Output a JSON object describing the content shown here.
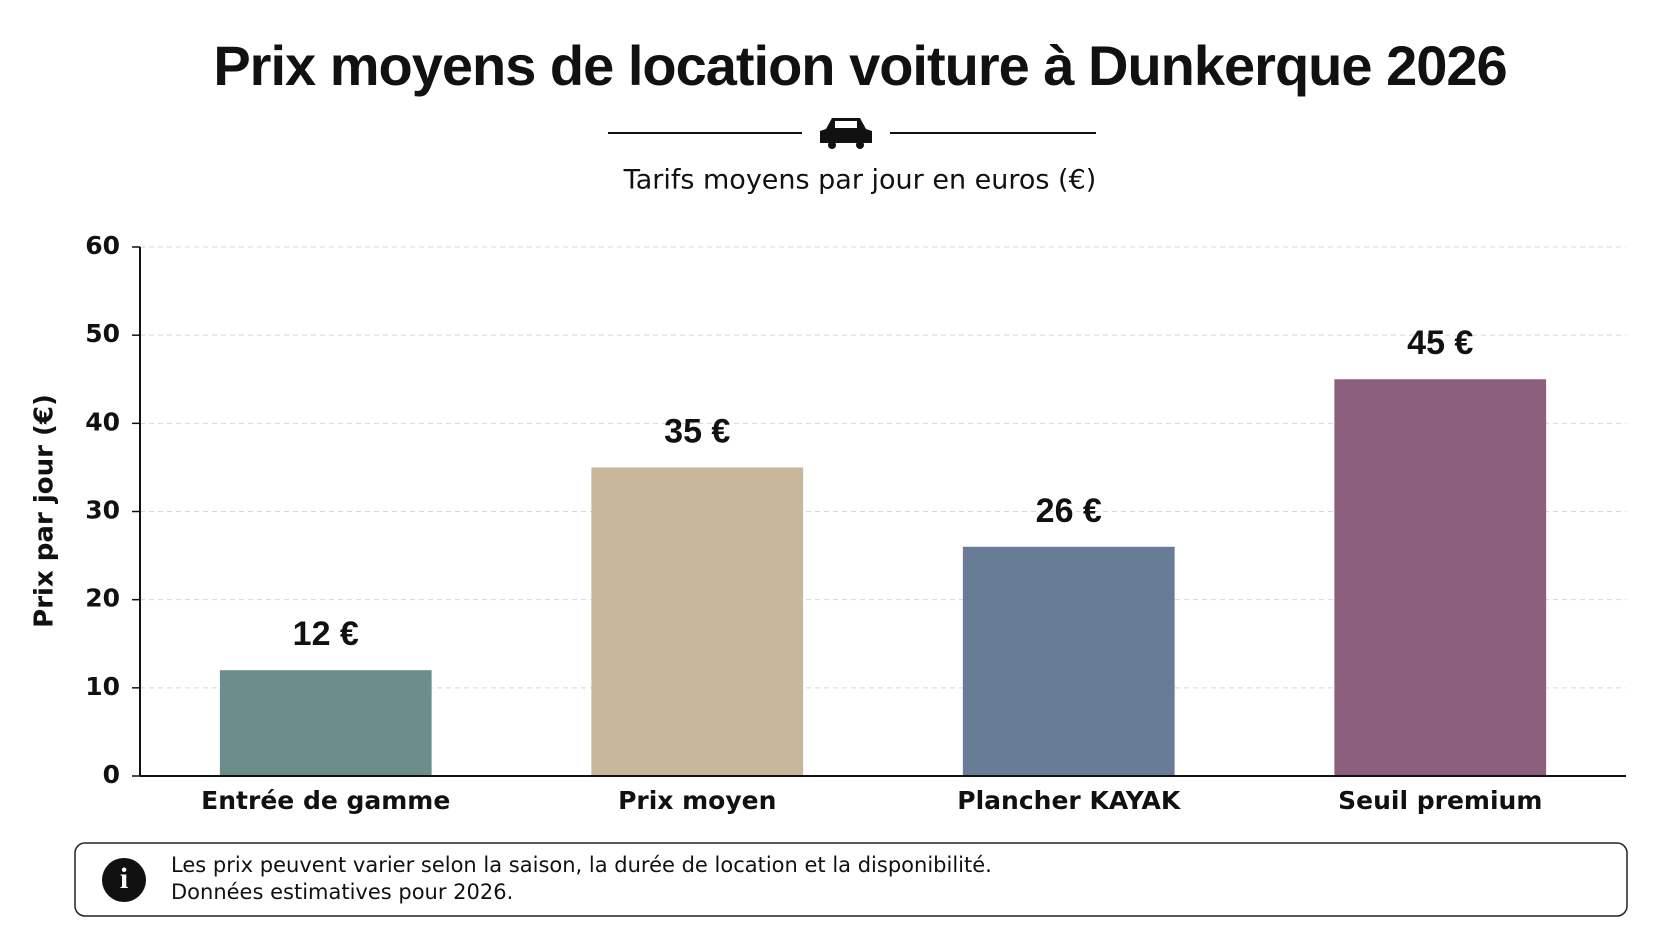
{
  "chart_data": {
    "type": "bar",
    "title": "Prix moyens de location voiture à Dunkerque 2026",
    "subtitle": "Tarifs moyens par jour en euros (€)",
    "y_label": "Prix par jour (€)",
    "categories": [
      "Entrée de gamme",
      "Prix moyen",
      "Plancher KAYAK",
      "Seuil premium"
    ],
    "values": [
      12,
      35,
      26,
      45
    ],
    "value_labels": [
      "12 €",
      "35 €",
      "26 €",
      "45 €"
    ],
    "colors": [
      "#6b8e8c",
      "#c8b79a",
      "#687c98",
      "#8c5f7c"
    ],
    "ylim": [
      0,
      60
    ],
    "yticks": [
      0,
      10,
      20,
      30,
      40,
      50,
      60
    ],
    "grid": true,
    "note": [
      "Les prix peuvent varier selon la saison, la durée de location et la disponibilité.",
      "Données estimatives pour 2026."
    ]
  }
}
